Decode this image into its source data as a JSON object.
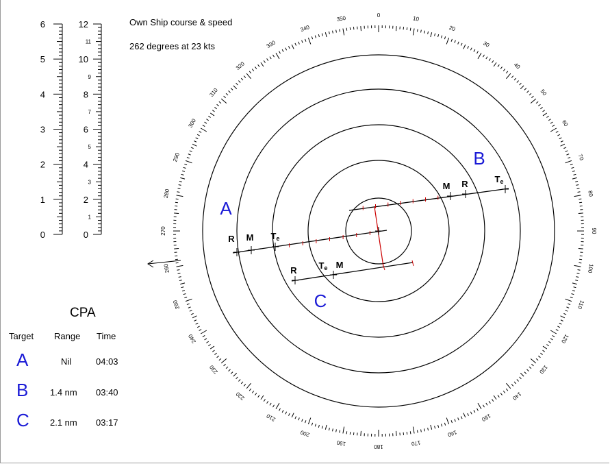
{
  "own_ship": {
    "line1": "Own Ship course & speed",
    "line2": "262 degrees at 23 kts"
  },
  "scales": {
    "left": [
      "0",
      "1",
      "2",
      "3",
      "4",
      "5",
      "6"
    ],
    "right_major": [
      "0",
      "2",
      "4",
      "6",
      "8",
      "10",
      "12"
    ],
    "right_minor": [
      "1",
      "3",
      "5",
      "7",
      "9",
      "11"
    ]
  },
  "bearing_labels": [
    "0",
    "10",
    "20",
    "30",
    "40",
    "50",
    "60",
    "70",
    "80",
    "90",
    "100",
    "110",
    "120",
    "130",
    "140",
    "150",
    "160",
    "170",
    "180",
    "190",
    "200",
    "210",
    "220",
    "230",
    "240",
    "250",
    "260",
    "270",
    "280",
    "290",
    "300",
    "310",
    "320",
    "330",
    "340",
    "350"
  ],
  "targets": [
    {
      "id": "A",
      "label": "A",
      "color": "#1a1ad6",
      "marks": [
        {
          "t": "R"
        },
        {
          "t": "M"
        },
        {
          "t": "T",
          "sub": "e"
        }
      ]
    },
    {
      "id": "B",
      "label": "B",
      "color": "#1a1ad6",
      "marks": [
        {
          "t": "M"
        },
        {
          "t": "R"
        },
        {
          "t": "T",
          "sub": "e"
        }
      ]
    },
    {
      "id": "C",
      "label": "C",
      "color": "#1a1ad6",
      "marks": [
        {
          "t": "R"
        },
        {
          "t": "T",
          "sub": "e"
        },
        {
          "t": "M"
        }
      ]
    }
  ],
  "cpa": {
    "title": "CPA",
    "headers": {
      "target": "Target",
      "range": "Range",
      "time": "Time"
    },
    "rows": [
      {
        "target": "A",
        "range": "Nil",
        "time": "04:03"
      },
      {
        "target": "B",
        "range": "1.4 nm",
        "time": "03:40"
      },
      {
        "target": "C",
        "range": "2.1 nm",
        "time": "03:17"
      }
    ]
  },
  "colors": {
    "target_label": "#1a1ad6",
    "plot_marks": "#cc0000",
    "lines": "#000000"
  }
}
